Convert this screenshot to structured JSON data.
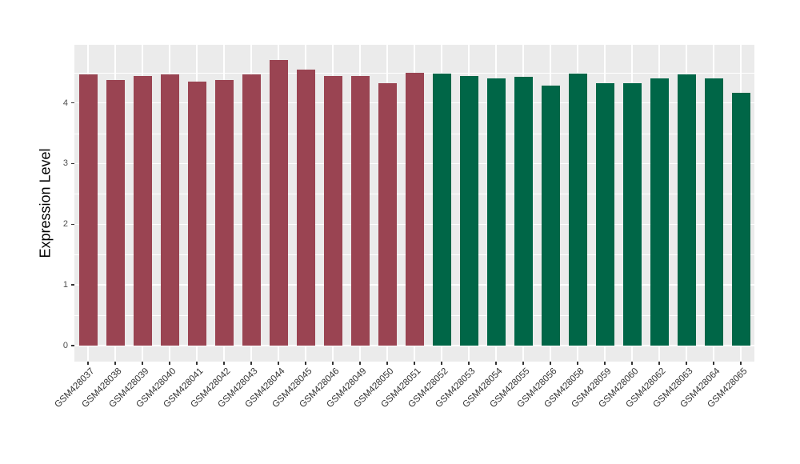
{
  "chart_data": {
    "type": "bar",
    "title": "",
    "xlabel": "",
    "ylabel": "Expression Level",
    "categories": [
      "GSM428037",
      "GSM428038",
      "GSM428039",
      "GSM428040",
      "GSM428041",
      "GSM428042",
      "GSM428043",
      "GSM428044",
      "GSM428045",
      "GSM428046",
      "GSM428049",
      "GSM428050",
      "GSM428051",
      "GSM428052",
      "GSM428053",
      "GSM428054",
      "GSM428055",
      "GSM428056",
      "GSM428058",
      "GSM428059",
      "GSM428060",
      "GSM428062",
      "GSM428063",
      "GSM428064",
      "GSM428065"
    ],
    "values": [
      4.47,
      4.38,
      4.44,
      4.47,
      4.35,
      4.38,
      4.47,
      4.71,
      4.55,
      4.44,
      4.44,
      4.32,
      4.5,
      4.48,
      4.44,
      4.4,
      4.43,
      4.29,
      4.48,
      4.32,
      4.32,
      4.41,
      4.47,
      4.4,
      4.16
    ],
    "group_split_index": 13,
    "group_colors": [
      "#9A4452",
      "#006647"
    ],
    "yticks": [
      0,
      1,
      2,
      3,
      4
    ],
    "yminor_ticks": [
      0.5,
      1.5,
      2.5,
      3.5,
      4.5
    ],
    "ylim": [
      -0.25,
      4.96
    ],
    "grid": true,
    "legend": false
  },
  "style": {
    "background": "#FFFFFF",
    "panel_bg": "#EBEBEB",
    "grid_color": "#FFFFFF",
    "axis_tick_color": "#333333",
    "tick_label_color": "#4D4D4D",
    "x_label_color": "#333333",
    "axis_title_color": "#000000"
  }
}
